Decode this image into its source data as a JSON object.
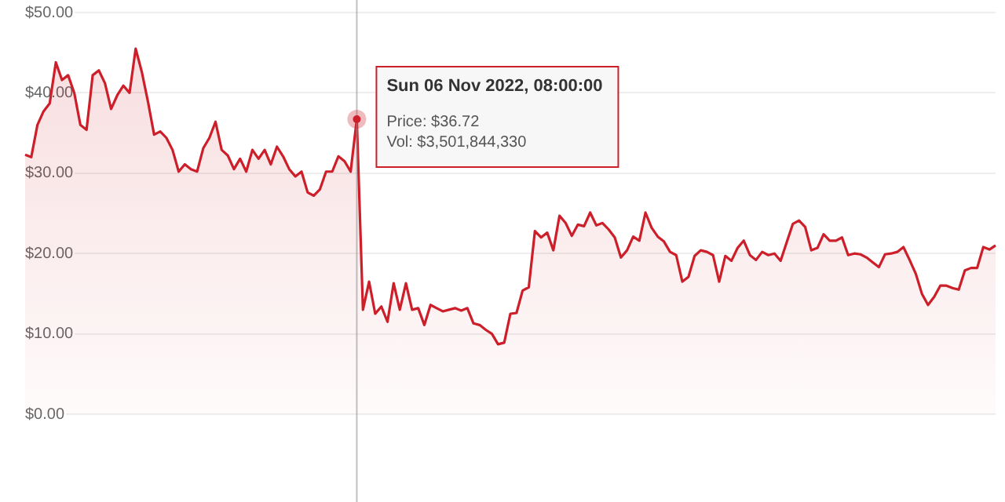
{
  "chart_data": {
    "type": "area",
    "categories": [
      null,
      null,
      null,
      null,
      null,
      null,
      null,
      null,
      null,
      null,
      null,
      null,
      null,
      null,
      null,
      null,
      null,
      null,
      null,
      null,
      null,
      null,
      null,
      null,
      null,
      null,
      null,
      null,
      null,
      null,
      null,
      null,
      null,
      null,
      null,
      null,
      null,
      null,
      null,
      null,
      null,
      null,
      null,
      null,
      null,
      null,
      null,
      null,
      null,
      null,
      null,
      null,
      null,
      null,
      null,
      null,
      null,
      null,
      null,
      null,
      null,
      null,
      null,
      null,
      null,
      null,
      null,
      null,
      null,
      null,
      null,
      null,
      null,
      null,
      null,
      null,
      null,
      null,
      null,
      null,
      null,
      null,
      null,
      null,
      null,
      null,
      null,
      null,
      null,
      null,
      null,
      null,
      null,
      null,
      null,
      null,
      null,
      null,
      null,
      null,
      null,
      null,
      null,
      null,
      null,
      null,
      null,
      null,
      null,
      null,
      null,
      null,
      null,
      null,
      null,
      null,
      null,
      null,
      null,
      null,
      null,
      null,
      null,
      null,
      null,
      null,
      null,
      null,
      null,
      null,
      null,
      null,
      null,
      null,
      null,
      null,
      null,
      null,
      null,
      null,
      null,
      null,
      null,
      null,
      null,
      null,
      null,
      null,
      null,
      null,
      null,
      null,
      null,
      null,
      null,
      null,
      null,
      null,
      null
    ],
    "series": [
      {
        "color": "#cc1f2a",
        "values": [
          32.3,
          32,
          36,
          37.7,
          38.7,
          43.8,
          41.6,
          42.2,
          40,
          36,
          35.4,
          42.2,
          42.8,
          41.2,
          38,
          39.7,
          40.9,
          40,
          45.5,
          42.6,
          38.9,
          34.8,
          35.2,
          34.4,
          32.9,
          30.2,
          31.1,
          30.5,
          30.2,
          33.1,
          34.4,
          36.4,
          32.9,
          32.2,
          30.5,
          31.8,
          30.2,
          32.9,
          31.8,
          32.9,
          31.1,
          33.3,
          32.1,
          30.5,
          29.6,
          30.2,
          27.6,
          27.2,
          28,
          30.2,
          30.2,
          32.1,
          31.5,
          30.2,
          36.72,
          13,
          16.5,
          12.5,
          13.4,
          11.5,
          16.3,
          13,
          16.3,
          13,
          13.2,
          11.1,
          13.6,
          13.2,
          12.8,
          13,
          13.2,
          12.9,
          13.2,
          11.3,
          11.1,
          10.5,
          10,
          8.7,
          8.9,
          12.5,
          12.6,
          15.4,
          15.8,
          22.8,
          22,
          22.6,
          20.4,
          24.7,
          23.8,
          22.2,
          23.6,
          23.4,
          25.1,
          23.5,
          23.8,
          23,
          22,
          19.5,
          20.4,
          22.1,
          21.6,
          25.1,
          23.2,
          22.1,
          21.5,
          20.2,
          19.8,
          16.5,
          17.1,
          19.7,
          20.4,
          20.2,
          19.8,
          16.5,
          19.7,
          19.1,
          20.7,
          21.6,
          19.8,
          19.2,
          20.2,
          19.8,
          20,
          19.1,
          21.4,
          23.7,
          24.1,
          23.3,
          20.4,
          20.7,
          22.4,
          21.6,
          21.6,
          22,
          19.8,
          20,
          19.9,
          19.5,
          18.9,
          18.3,
          19.9,
          20,
          20.2,
          20.8,
          19.2,
          17.5,
          15,
          13.6,
          14.6,
          16,
          16,
          15.7,
          15.5,
          17.9,
          18.2,
          18.2,
          20.8,
          20.5,
          21
        ]
      }
    ],
    "ylim": [
      0,
      50
    ],
    "yticks": [
      {
        "value": 0,
        "label": "$0.00"
      },
      {
        "value": 10,
        "label": "$10.00"
      },
      {
        "value": 20,
        "label": "$20.00"
      },
      {
        "value": 30,
        "label": "$30.00"
      },
      {
        "value": 40,
        "label": "$40.00"
      },
      {
        "value": 50,
        "label": "$50.00"
      }
    ],
    "grid": "y",
    "tick_labels": "y",
    "marker": "none",
    "annotations": [
      "Sun 06 Nov 2022, 08:00:00",
      "Price: $36.72",
      "Vol: $3,501,844,330"
    ]
  }
}
